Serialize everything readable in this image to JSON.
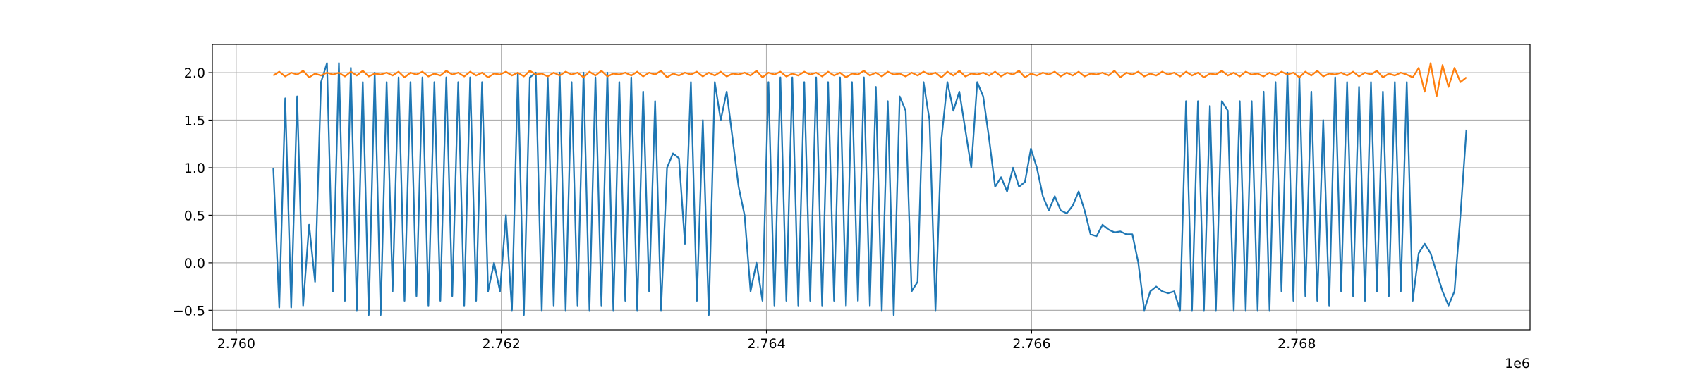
{
  "chart_data": {
    "type": "line",
    "x_offset_label": "1e6",
    "xlim": [
      2759820,
      2769760
    ],
    "xticks": [
      {
        "value": 2760000,
        "label": "2.760"
      },
      {
        "value": 2762000,
        "label": "2.762"
      },
      {
        "value": 2764000,
        "label": "2.764"
      },
      {
        "value": 2766000,
        "label": "2.766"
      },
      {
        "value": 2768000,
        "label": "2.768"
      }
    ],
    "ylim": [
      -0.705,
      2.297
    ],
    "yticks": [
      {
        "value": -0.5,
        "label": "−0.5"
      },
      {
        "value": 0,
        "label": "0.0"
      },
      0.5,
      {
        "value": 1,
        "label": "1.0"
      },
      1.5,
      {
        "value": 2,
        "label": "2.0"
      }
    ],
    "grid": true,
    "x": [
      2760280,
      2760325,
      2760370,
      2760415,
      2760460,
      2760505,
      2760550,
      2760595,
      2760640,
      2760685,
      2760730,
      2760775,
      2760820,
      2760865,
      2760910,
      2760955,
      2761000,
      2761045,
      2761090,
      2761135,
      2761180,
      2761225,
      2761270,
      2761315,
      2761360,
      2761405,
      2761450,
      2761495,
      2761540,
      2761585,
      2761630,
      2761675,
      2761720,
      2761765,
      2761810,
      2761855,
      2761900,
      2761945,
      2761990,
      2762035,
      2762080,
      2762125,
      2762170,
      2762215,
      2762260,
      2762305,
      2762350,
      2762395,
      2762440,
      2762485,
      2762530,
      2762575,
      2762620,
      2762665,
      2762710,
      2762755,
      2762800,
      2762845,
      2762890,
      2762935,
      2762980,
      2763025,
      2763070,
      2763115,
      2763160,
      2763205,
      2763250,
      2763295,
      2763340,
      2763385,
      2763430,
      2763475,
      2763520,
      2763565,
      2763610,
      2763655,
      2763700,
      2763745,
      2763790,
      2763835,
      2763880,
      2763925,
      2763970,
      2764015,
      2764060,
      2764105,
      2764150,
      2764195,
      2764240,
      2764285,
      2764330,
      2764375,
      2764420,
      2764465,
      2764510,
      2764555,
      2764600,
      2764645,
      2764690,
      2764735,
      2764780,
      2764825,
      2764870,
      2764915,
      2764960,
      2765005,
      2765050,
      2765095,
      2765140,
      2765185,
      2765230,
      2765275,
      2765320,
      2765365,
      2765410,
      2765455,
      2765500,
      2765545,
      2765590,
      2765635,
      2765680,
      2765725,
      2765770,
      2765815,
      2765860,
      2765905,
      2765950,
      2765995,
      2766040,
      2766085,
      2766130,
      2766175,
      2766220,
      2766265,
      2766310,
      2766355,
      2766400,
      2766445,
      2766490,
      2766535,
      2766580,
      2766625,
      2766670,
      2766715,
      2766760,
      2766805,
      2766850,
      2766895,
      2766940,
      2766985,
      2767030,
      2767075,
      2767120,
      2767165,
      2767210,
      2767255,
      2767300,
      2767345,
      2767390,
      2767435,
      2767480,
      2767525,
      2767570,
      2767615,
      2767660,
      2767705,
      2767750,
      2767795,
      2767840,
      2767885,
      2767930,
      2767975,
      2768020,
      2768065,
      2768110,
      2768155,
      2768200,
      2768245,
      2768290,
      2768335,
      2768380,
      2768425,
      2768470,
      2768515,
      2768560,
      2768605,
      2768650,
      2768695,
      2768740,
      2768785,
      2768830,
      2768875,
      2768920,
      2768965,
      2769010,
      2769055,
      2769100,
      2769145,
      2769190,
      2769235,
      2769280
    ],
    "series": [
      {
        "color": "#1f77b4",
        "values": [
          1.0,
          -0.47,
          1.73,
          -0.47,
          1.75,
          -0.45,
          0.4,
          -0.2,
          1.9,
          2.1,
          -0.3,
          2.1,
          -0.4,
          2.05,
          -0.5,
          1.9,
          -0.55,
          2.0,
          -0.55,
          1.9,
          -0.3,
          1.95,
          -0.4,
          1.9,
          -0.35,
          1.95,
          -0.45,
          1.9,
          -0.4,
          1.95,
          -0.35,
          1.9,
          -0.45,
          1.95,
          -0.4,
          1.9,
          -0.3,
          0.0,
          -0.3,
          0.5,
          -0.5,
          2.0,
          -0.55,
          1.95,
          2.0,
          -0.5,
          1.95,
          -0.45,
          2.0,
          -0.5,
          1.9,
          -0.45,
          2.0,
          -0.5,
          1.95,
          -0.45,
          2.0,
          -0.5,
          1.9,
          -0.4,
          1.95,
          -0.5,
          1.8,
          -0.3,
          1.7,
          -0.5,
          1.0,
          1.15,
          1.1,
          0.2,
          1.9,
          -0.4,
          1.5,
          -0.55,
          1.9,
          1.5,
          1.8,
          1.3,
          0.8,
          0.5,
          -0.3,
          0.0,
          -0.4,
          1.9,
          -0.45,
          1.95,
          -0.4,
          1.95,
          -0.45,
          1.9,
          -0.4,
          1.95,
          -0.45,
          1.9,
          -0.4,
          1.95,
          -0.45,
          1.9,
          -0.4,
          1.95,
          -0.45,
          1.85,
          -0.5,
          1.7,
          -0.55,
          1.75,
          1.6,
          -0.3,
          -0.2,
          1.9,
          1.5,
          -0.5,
          1.3,
          1.9,
          1.6,
          1.8,
          1.4,
          1.0,
          1.9,
          1.75,
          1.3,
          0.8,
          0.9,
          0.75,
          1.0,
          0.8,
          0.85,
          1.2,
          1.0,
          0.7,
          0.55,
          0.7,
          0.55,
          0.52,
          0.6,
          0.75,
          0.55,
          0.3,
          0.28,
          0.4,
          0.35,
          0.32,
          0.33,
          0.3,
          0.3,
          0.0,
          -0.5,
          -0.3,
          -0.25,
          -0.3,
          -0.32,
          -0.3,
          -0.5,
          1.7,
          -0.5,
          1.7,
          -0.5,
          1.65,
          -0.5,
          1.7,
          1.6,
          -0.5,
          1.7,
          -0.5,
          1.7,
          -0.5,
          1.8,
          -0.5,
          1.9,
          -0.3,
          2.0,
          -0.4,
          1.95,
          -0.35,
          1.8,
          -0.4,
          1.5,
          -0.45,
          1.95,
          -0.3,
          1.9,
          -0.35,
          1.85,
          -0.4,
          1.9,
          -0.3,
          1.8,
          -0.35,
          1.9,
          -0.3,
          1.9,
          -0.4,
          0.1,
          0.2,
          0.1,
          -0.1,
          -0.3,
          -0.45,
          -0.3,
          0.5,
          1.4
        ]
      },
      {
        "color": "#ff7f0e",
        "values": [
          1.97,
          2.01,
          1.96,
          2.0,
          1.98,
          2.02,
          1.95,
          1.99,
          1.97,
          2.0,
          1.98,
          2.0,
          1.96,
          2.01,
          1.97,
          2.02,
          1.96,
          1.99,
          1.98,
          2.0,
          1.97,
          2.01,
          1.95,
          2.0,
          1.98,
          2.01,
          1.96,
          1.99,
          1.97,
          2.02,
          1.98,
          2.0,
          1.96,
          2.01,
          1.97,
          2.0,
          1.95,
          1.99,
          1.98,
          2.01,
          1.97,
          2.0,
          1.96,
          2.02,
          1.98,
          1.99,
          1.96,
          2.0,
          1.97,
          2.01,
          1.98,
          2.0,
          1.95,
          2.01,
          1.97,
          2.02,
          1.96,
          1.99,
          1.98,
          2.0,
          1.97,
          2.01,
          1.96,
          2.0,
          1.98,
          2.02,
          1.95,
          1.99,
          1.97,
          2.0,
          1.98,
          2.01,
          1.96,
          2.0,
          1.97,
          2.01,
          1.96,
          1.99,
          1.98,
          2.0,
          1.97,
          2.02,
          1.95,
          2.0,
          1.98,
          2.01,
          1.96,
          1.99,
          1.97,
          2.01,
          1.98,
          2.0,
          1.96,
          2.01,
          1.97,
          2.0,
          1.95,
          1.99,
          1.98,
          2.02,
          1.97,
          2.0,
          1.96,
          2.01,
          1.98,
          1.99,
          1.96,
          2.0,
          1.97,
          2.01,
          1.98,
          2.0,
          1.95,
          2.01,
          1.97,
          2.02,
          1.96,
          1.99,
          1.98,
          2.0,
          1.97,
          2.01,
          1.96,
          2.0,
          1.98,
          2.02,
          1.95,
          1.99,
          1.97,
          2.0,
          1.98,
          2.01,
          1.96,
          2.0,
          1.97,
          2.01,
          1.96,
          1.99,
          1.98,
          2.0,
          1.97,
          2.02,
          1.95,
          2.0,
          1.98,
          2.01,
          1.96,
          1.99,
          1.97,
          2.01,
          1.98,
          2.0,
          1.96,
          2.01,
          1.97,
          2.0,
          1.95,
          1.99,
          1.98,
          2.02,
          1.97,
          2.0,
          1.96,
          2.01,
          1.98,
          1.99,
          1.96,
          2.0,
          1.97,
          2.01,
          1.98,
          2.0,
          1.95,
          2.01,
          1.97,
          2.02,
          1.96,
          1.99,
          1.98,
          2.0,
          1.97,
          2.01,
          1.96,
          2.0,
          1.98,
          2.02,
          1.95,
          1.99,
          1.97,
          2.0,
          1.98,
          1.95,
          2.05,
          1.8,
          2.1,
          1.75,
          2.08,
          1.85,
          2.05,
          1.9,
          1.95
        ]
      }
    ]
  }
}
